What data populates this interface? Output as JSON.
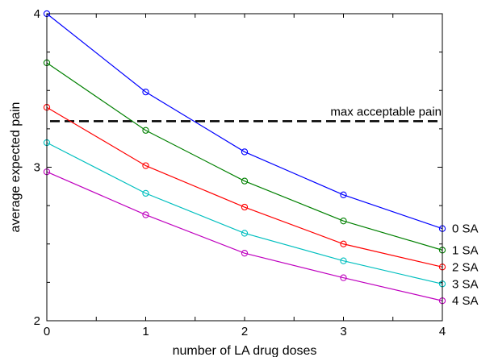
{
  "chart_data": {
    "type": "line",
    "title": "",
    "xlabel": "number of LA drug doses",
    "ylabel": "average expected pain",
    "xlim": [
      0,
      4
    ],
    "ylim": [
      2,
      4
    ],
    "x_ticks": [
      "0",
      "1",
      "2",
      "3",
      "4"
    ],
    "y_ticks": [
      "2",
      "3",
      "4"
    ],
    "grid": false,
    "x": [
      0,
      1,
      2,
      3,
      4
    ],
    "series": [
      {
        "name": "0 SA",
        "color": "#0000ff",
        "values": [
          4.0,
          3.49,
          3.1,
          2.82,
          2.6
        ]
      },
      {
        "name": "1 SA",
        "color": "#008000",
        "values": [
          3.68,
          3.24,
          2.91,
          2.65,
          2.46
        ]
      },
      {
        "name": "2 SA",
        "color": "#ff0000",
        "values": [
          3.39,
          3.01,
          2.74,
          2.5,
          2.35
        ]
      },
      {
        "name": "3 SA",
        "color": "#00bfbf",
        "values": [
          3.16,
          2.83,
          2.57,
          2.39,
          2.24
        ]
      },
      {
        "name": "4 SA",
        "color": "#bf00bf",
        "values": [
          2.97,
          2.69,
          2.44,
          2.28,
          2.13
        ]
      }
    ],
    "reference_line": {
      "label": "max acceptable pain",
      "y": 3.3,
      "style": "dashed",
      "color": "#000000"
    }
  }
}
